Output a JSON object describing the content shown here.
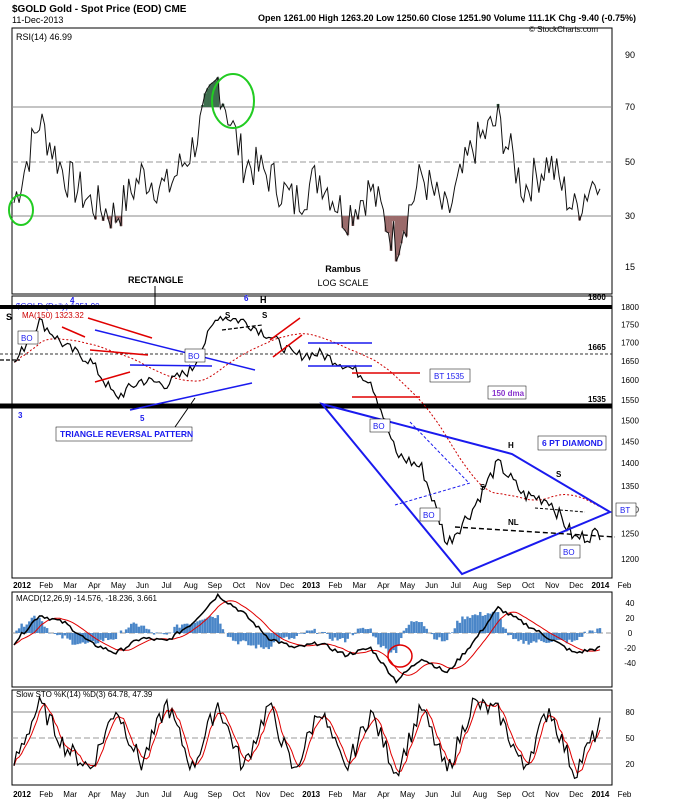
{
  "header": {
    "symbol_title": "$GOLD Gold - Spot Price (EOD) CME",
    "date": "11-Dec-2013",
    "quote": "Open 1261.00  High 1263.20  Low 1250.60  Close 1251.90  Volume 111.1K  Chg -9.40 (-0.75%)",
    "watermark": "© StockCharts.com"
  },
  "colors": {
    "price": "#000000",
    "ma": "#cc0000",
    "blue": "#1a1aee",
    "red_line": "#e00000",
    "rsi_fill": "#9b6b6b",
    "rsi_ob_fill": "#3f6f4f",
    "macd_hist": "#4a86c8",
    "circle_green": "#22cc22"
  },
  "x_axis": {
    "labels": [
      "2012",
      "Feb",
      "Mar",
      "Apr",
      "May",
      "Jun",
      "Jul",
      "Aug",
      "Sep",
      "Oct",
      "Nov",
      "Dec",
      "2013",
      "Feb",
      "Mar",
      "Apr",
      "May",
      "Jun",
      "Jul",
      "Aug",
      "Sep",
      "Oct",
      "Nov",
      "Dec",
      "2014",
      "Feb"
    ]
  },
  "rsi_panel": {
    "label": "RSI(14) 46.99",
    "ticks": [
      "90",
      "70",
      "50",
      "30",
      "15"
    ],
    "annotation_line1": "Rambus",
    "annotation_line2": "LOG SCALE"
  },
  "price_panel": {
    "legend_symbol": "$GOLD (Daily) 1251.90",
    "legend_ma": "MA(150) 1323.32",
    "ticks": [
      "1800",
      "1750",
      "1700",
      "1650",
      "1600",
      "1550",
      "1500",
      "1450",
      "1400",
      "1350",
      "1300",
      "1250",
      "1200"
    ],
    "level_1800": "1800",
    "level_1665": "1665",
    "level_1535": "1535",
    "annotations": {
      "rectangle": "RECTANGLE",
      "triangle": "TRIANGLE REVERSAL PATTERN",
      "bt_1535": "BT 1535",
      "dma": "150 dma",
      "diamond": "6 PT DIAMOND",
      "bt": "BT",
      "bo1": "BO",
      "bo2": "BO",
      "bo3": "BO",
      "bo4": "BO",
      "bo5": "BO",
      "s_left": "S",
      "s2": "S",
      "h1": "H",
      "s3": "S",
      "s4": "S",
      "h2": "H",
      "s5": "S",
      "nl": "NL",
      "n3": "3",
      "n4": "4",
      "n5": "5",
      "n6": "6"
    }
  },
  "macd_panel": {
    "label": "MACD(12,26,9) -14.576, -18.236, 3.661",
    "ticks": [
      "40",
      "20",
      "0",
      "-20",
      "-40"
    ]
  },
  "sto_panel": {
    "label": "Slow STO %K(14) %D(3) 64.78, 47.39",
    "ticks": [
      "80",
      "50",
      "20"
    ]
  },
  "chart_data": [
    {
      "type": "line",
      "name": "RSI(14)",
      "x": [
        "Jan 2012",
        "Feb 2012",
        "Mar 2012",
        "Apr 2012",
        "May 2012",
        "Jun 2012",
        "Jul 2012",
        "Aug 2012",
        "Sep 2012",
        "Oct 2012",
        "Nov 2012",
        "Dec 2012",
        "Jan 2013",
        "Feb 2013",
        "Mar 2013",
        "Apr 2013",
        "May 2013",
        "Jun 2013",
        "Jul 2013",
        "Aug 2013",
        "Sep 2013",
        "Oct 2013",
        "Nov 2013",
        "Dec 2013"
      ],
      "values": [
        35,
        65,
        45,
        35,
        30,
        45,
        40,
        55,
        80,
        50,
        45,
        35,
        45,
        30,
        40,
        20,
        45,
        30,
        55,
        65,
        40,
        50,
        32,
        47
      ],
      "ylim": [
        10,
        95
      ],
      "reference_lines": [
        70,
        50,
        30
      ]
    },
    {
      "type": "line",
      "name": "$GOLD",
      "x": [
        "Jan 2012",
        "Feb 2012",
        "Mar 2012",
        "Apr 2012",
        "May 2012",
        "Jun 2012",
        "Jul 2012",
        "Aug 2012",
        "Sep 2012",
        "Oct 2012",
        "Nov 2012",
        "Dec 2012",
        "Jan 2013",
        "Feb 2013",
        "Mar 2013",
        "Apr 2013",
        "May 2013",
        "Jun 2013",
        "Jul 2013",
        "Aug 2013",
        "Sep 2013",
        "Oct 2013",
        "Nov 2013",
        "Dec 2013"
      ],
      "values": [
        1640,
        1760,
        1690,
        1650,
        1555,
        1600,
        1590,
        1630,
        1775,
        1760,
        1720,
        1665,
        1670,
        1640,
        1600,
        1420,
        1390,
        1230,
        1300,
        1400,
        1330,
        1320,
        1240,
        1252
      ],
      "ylim": [
        1180,
        1830
      ],
      "levels": [
        1800,
        1665,
        1535
      ]
    },
    {
      "type": "line",
      "name": "MACD(12,26,9)",
      "x": [
        "Jan 2012",
        "Feb 2012",
        "Mar 2012",
        "Apr 2012",
        "May 2012",
        "Jun 2012",
        "Jul 2012",
        "Aug 2012",
        "Sep 2012",
        "Oct 2012",
        "Nov 2012",
        "Dec 2012",
        "Jan 2013",
        "Feb 2013",
        "Mar 2013",
        "Apr 2013",
        "May 2013",
        "Jun 2013",
        "Jul 2013",
        "Aug 2013",
        "Sep 2013",
        "Oct 2013",
        "Nov 2013",
        "Dec 2013"
      ],
      "values": [
        -10,
        18,
        10,
        -10,
        -20,
        -5,
        -8,
        10,
        38,
        20,
        -5,
        -15,
        -10,
        -22,
        -15,
        -48,
        -25,
        -40,
        -10,
        25,
        10,
        -5,
        -20,
        -15
      ],
      "ylim": [
        -50,
        45
      ]
    },
    {
      "type": "line",
      "name": "Slow STO",
      "x": [
        "Jan 2012",
        "Feb 2012",
        "Mar 2012",
        "Apr 2012",
        "May 2012",
        "Jun 2012",
        "Jul 2012",
        "Aug 2012",
        "Sep 2012",
        "Oct 2012",
        "Nov 2012",
        "Dec 2012",
        "Jan 2013",
        "Feb 2013",
        "Mar 2013",
        "Apr 2013",
        "May 2013",
        "Jun 2013",
        "Jul 2013",
        "Aug 2013",
        "Sep 2013",
        "Oct 2013",
        "Nov 2013",
        "Dec 2013"
      ],
      "values": [
        20,
        90,
        40,
        15,
        85,
        20,
        90,
        15,
        90,
        15,
        88,
        10,
        85,
        12,
        80,
        10,
        85,
        10,
        90,
        80,
        15,
        85,
        10,
        65
      ],
      "ylim": [
        0,
        100
      ],
      "reference_lines": [
        80,
        50,
        20
      ]
    }
  ]
}
